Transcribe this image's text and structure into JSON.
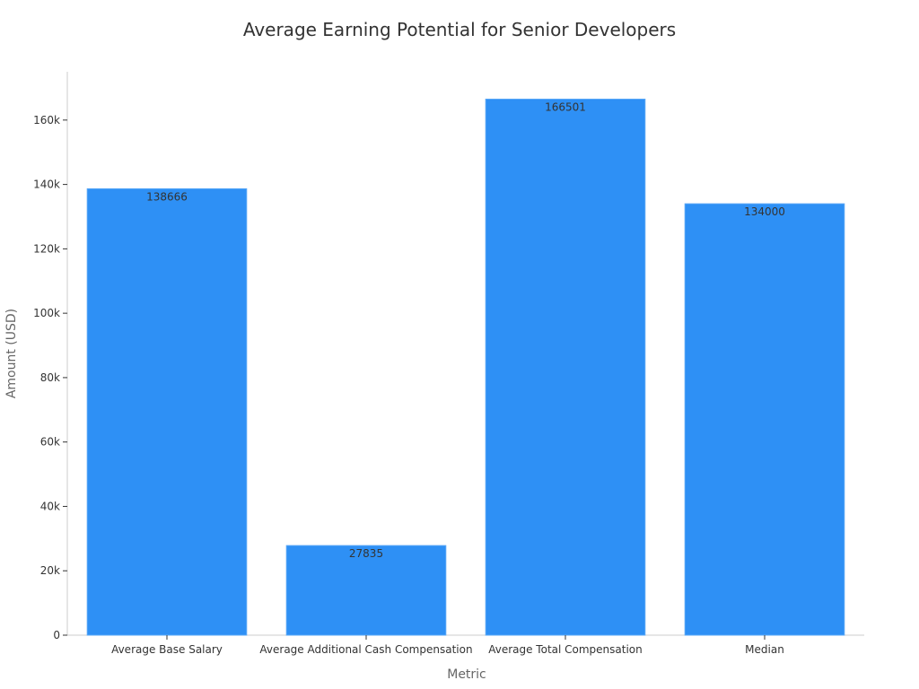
{
  "chart_data": {
    "type": "bar",
    "title": "Average Earning Potential for Senior Developers",
    "xlabel": "Metric",
    "ylabel": "Amount (USD)",
    "categories": [
      "Average Base Salary",
      "Average Additional Cash Compensation",
      "Average Total Compensation",
      "Median"
    ],
    "values": [
      138666,
      27835,
      166501,
      134000
    ],
    "data_labels": [
      "138666",
      "27835",
      "166501",
      "134000"
    ],
    "ylim": [
      0,
      175000
    ],
    "yticks": [
      0,
      20000,
      40000,
      60000,
      80000,
      100000,
      120000,
      140000,
      160000
    ],
    "ytick_labels": [
      "0",
      "20k",
      "40k",
      "60k",
      "80k",
      "100k",
      "120k",
      "140k",
      "160k"
    ],
    "grid": false,
    "legend": "none",
    "colors": {
      "bar": "#2e90f5",
      "bar_edge": "#5aa8f7",
      "axis": "#cccccc",
      "text": "#333333",
      "axis_title": "#666666"
    }
  }
}
